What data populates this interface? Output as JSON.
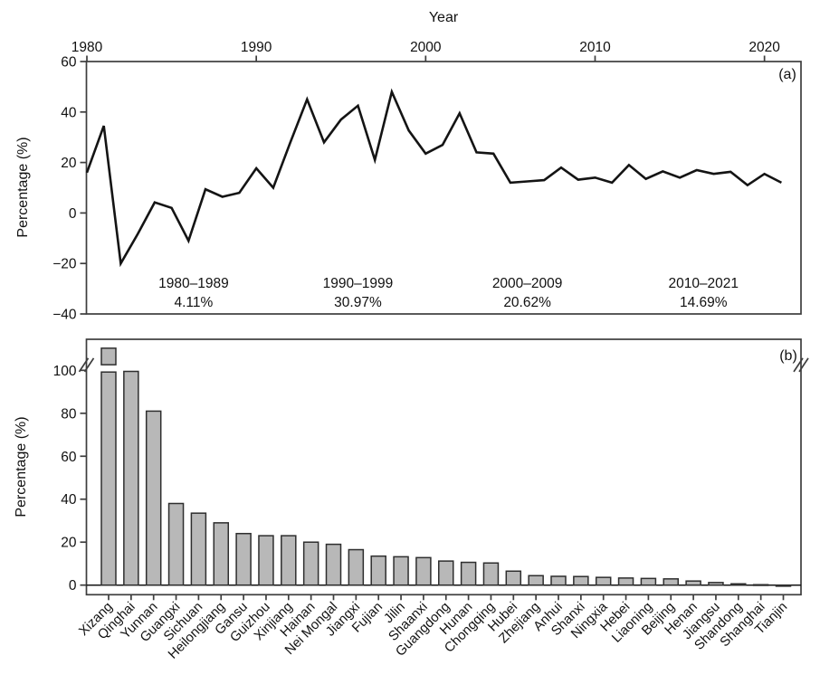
{
  "figure": {
    "x_axis_title": "Year",
    "panel_a": {
      "label": "(a)",
      "y_axis_title": "Percentage (%)"
    },
    "panel_b": {
      "label": "(b)",
      "y_axis_title": "Percentage (%)"
    }
  },
  "colors": {
    "background": "#ffffff",
    "line": "#141414",
    "axis": "#3d3d3d",
    "tick_label": "#111111",
    "bar_fill": "#b8b8b8",
    "bar_border": "#2e2e2e",
    "annotation_text": "#595959"
  },
  "chart_data": [
    {
      "type": "line",
      "panel": "a",
      "xlabel": "Year",
      "ylabel": "Percentage (%)",
      "xlim": [
        1979.9,
        2022.2
      ],
      "ylim": [
        -40,
        60
      ],
      "grid": false,
      "legend": "none",
      "x_ticks": [
        {
          "v": 1980,
          "label": "1980"
        },
        {
          "v": 1990,
          "label": "1990"
        },
        {
          "v": 2000,
          "label": "2000"
        },
        {
          "v": 2010,
          "label": "2010"
        },
        {
          "v": 2020,
          "label": "2020"
        }
      ],
      "y_ticks": [
        {
          "v": 60,
          "label": "60"
        },
        {
          "v": 40,
          "label": "40"
        },
        {
          "v": 20,
          "label": "20"
        },
        {
          "v": 0,
          "label": "0"
        },
        {
          "v": -20,
          "label": "−20"
        },
        {
          "v": -40,
          "label": "−40"
        }
      ],
      "x": [
        1980,
        1981,
        1982,
        1983,
        1984,
        1985,
        1986,
        1987,
        1988,
        1989,
        1990,
        1991,
        1992,
        1993,
        1994,
        1995,
        1996,
        1997,
        1998,
        1999,
        2000,
        2001,
        2002,
        2003,
        2004,
        2005,
        2006,
        2007,
        2008,
        2009,
        2010,
        2011,
        2012,
        2013,
        2014,
        2015,
        2016,
        2017,
        2018,
        2019,
        2020,
        2021
      ],
      "y": [
        16,
        34.5,
        -20,
        -8.4,
        4.2,
        2,
        -11,
        9.4,
        6.4,
        8,
        17.7,
        10,
        27.8,
        45,
        28,
        37,
        42.5,
        21,
        48,
        32.7,
        23.5,
        27,
        39.5,
        24,
        23.5,
        12,
        12.5,
        13,
        18,
        13.2,
        14,
        12,
        19,
        13.5,
        16.5,
        14,
        17,
        15.5,
        16.3,
        11,
        15.5,
        12
      ],
      "annotations": [
        {
          "period": "1980–1989",
          "value": "4.11%",
          "x_year": 1986.3
        },
        {
          "period": "1990–1999",
          "value": "30.97%",
          "x_year": 1996.0
        },
        {
          "period": "2000–2009",
          "value": "20.62%",
          "x_year": 2006.0
        },
        {
          "period": "2010–2021",
          "value": "14.69%",
          "x_year": 2016.4
        }
      ]
    },
    {
      "type": "bar",
      "panel": "b",
      "xlabel": "",
      "ylabel": "Percentage (%)",
      "ylim": [
        -5,
        118
      ],
      "grid": false,
      "legend": "none",
      "y_ticks": [
        {
          "v": 0,
          "label": "0"
        },
        {
          "v": 20,
          "label": "20"
        },
        {
          "v": 40,
          "label": "40"
        },
        {
          "v": 60,
          "label": "60"
        },
        {
          "v": 80,
          "label": "80"
        },
        {
          "v": 100,
          "label": "100"
        }
      ],
      "categories": [
        "Xizang",
        "Qinghai",
        "Yunnan",
        "Guangxi",
        "Sichuan",
        "Heilongjiang",
        "Gansu",
        "Guizhou",
        "Xinjiang",
        "Hainan",
        "Nei Mongal",
        "Jiangxi",
        "Fujian",
        "Jilin",
        "Shaanxi",
        "Guangdong",
        "Hunan",
        "Chongqing",
        "Hubei",
        "Zhejiang",
        "Anhui",
        "Shanxi",
        "Ningxia",
        "Hebei",
        "Liaoning",
        "Beijing",
        "Henan",
        "Jiangsu",
        "Shandong",
        "Shanghai",
        "Tianjin"
      ],
      "values": [
        110.3,
        99.5,
        81,
        38,
        33.5,
        29,
        24,
        23,
        23,
        20,
        19,
        16.5,
        13.5,
        13.2,
        12.8,
        11.2,
        10.6,
        10.3,
        6.5,
        4.4,
        4.1,
        4.0,
        3.6,
        3.3,
        3.1,
        2.9,
        1.9,
        1.2,
        0.6,
        0.2,
        -0.5
      ],
      "axis_break": {
        "marks_at_value": 102.5,
        "note": "y-axis broken above 100 on both sides; Xizang bar drawn with a break gap",
        "xizang_segments": {
          "lower_top": 99.2,
          "upper_bottom": 102.6,
          "upper_top": 110.3
        }
      }
    }
  ]
}
